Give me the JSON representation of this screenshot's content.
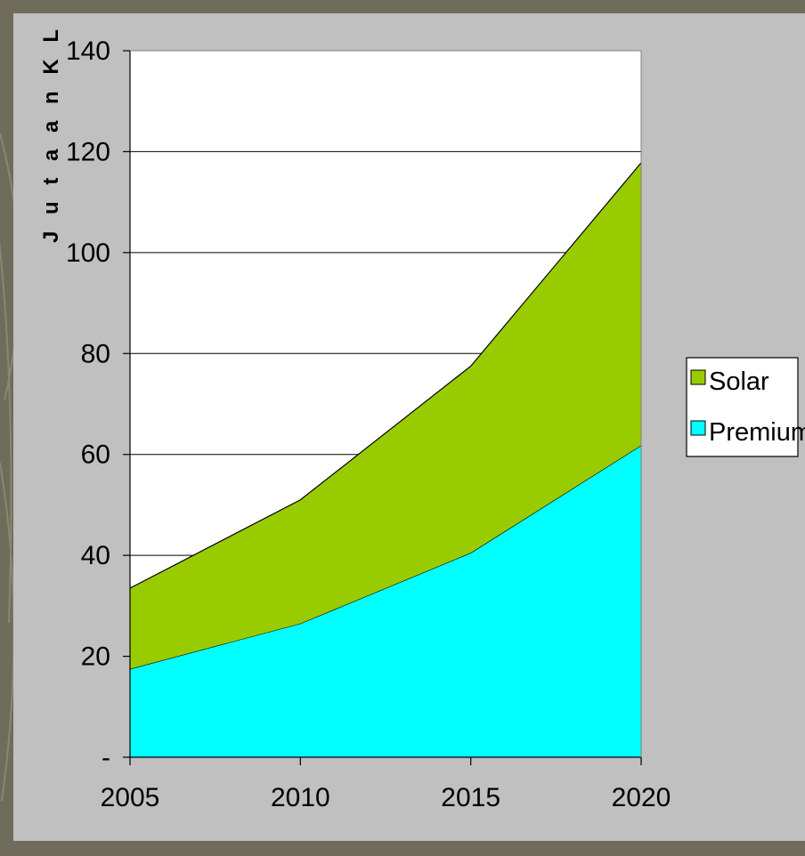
{
  "chart_data": {
    "type": "area",
    "stacked": true,
    "x": [
      "2005",
      "2010",
      "2015",
      "2020"
    ],
    "series": [
      {
        "name": "Premium",
        "values": [
          17.5,
          26.5,
          40.5,
          61.8
        ],
        "color": "#00ffff"
      },
      {
        "name": "Solar",
        "values": [
          16.0,
          24.5,
          37.0,
          56.0
        ],
        "color": "#99cc00"
      }
    ],
    "totals": [
      33.5,
      51.0,
      77.5,
      117.8
    ],
    "ylabel": "J u t a a n  K L",
    "ylim": [
      0,
      140
    ],
    "yticks": [
      {
        "value": 0,
        "label": "-"
      },
      {
        "value": 20,
        "label": "20"
      },
      {
        "value": 40,
        "label": "40"
      },
      {
        "value": 60,
        "label": "60"
      },
      {
        "value": 80,
        "label": "80"
      },
      {
        "value": 100,
        "label": "100"
      },
      {
        "value": 120,
        "label": "120"
      },
      {
        "value": 140,
        "label": "140"
      }
    ],
    "grid": true,
    "legend": {
      "position": "right",
      "order": [
        "Solar",
        "Premium"
      ]
    },
    "plot_background": "#ffffff",
    "panel_background": "#c0c0c0"
  }
}
